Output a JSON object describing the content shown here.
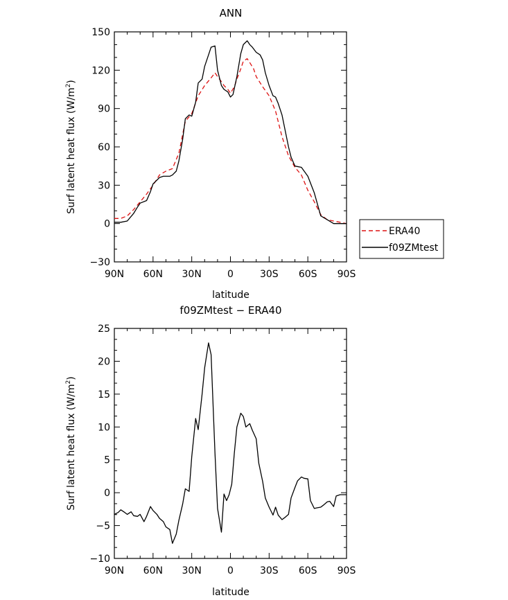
{
  "chart_data": [
    {
      "type": "line",
      "title": "ANN",
      "xlabel": "latitude",
      "ylabel": "Surf latent heat flux (W/m²)",
      "ylabel_prefix": "Surf latent heat flux (W/m",
      "ylabel_sup": "2",
      "ylabel_suffix": ")",
      "xlim": [
        -90,
        90
      ],
      "ylim": [
        -30,
        150
      ],
      "xticks": [
        -90,
        -60,
        -30,
        0,
        30,
        60,
        90
      ],
      "xtick_labels": [
        "90N",
        "60N",
        "30N",
        "0",
        "30S",
        "60S",
        "90S"
      ],
      "yticks": [
        -30,
        0,
        30,
        60,
        90,
        120,
        150
      ],
      "ytick_labels": [
        "−30",
        "0",
        "30",
        "60",
        "90",
        "120",
        "150"
      ],
      "legend": {
        "placement": "outside-right"
      },
      "grid": false,
      "series": [
        {
          "name": "ERA40",
          "color": "#dd1111",
          "dash": "dashed",
          "x": [
            -90,
            -85,
            -80,
            -75,
            -70,
            -65,
            -60,
            -55,
            -50,
            -45,
            -40,
            -35,
            -30,
            -25,
            -20,
            -15,
            -12,
            -10,
            -7,
            -5,
            -2,
            0,
            3,
            5,
            8,
            10,
            13,
            15,
            18,
            20,
            25,
            30,
            35,
            40,
            45,
            50,
            55,
            60,
            65,
            70,
            75,
            80,
            85,
            90
          ],
          "y": [
            4,
            4,
            6,
            11,
            17,
            23,
            30,
            38,
            41,
            43,
            55,
            80,
            86,
            100,
            108,
            114,
            118,
            115,
            111,
            108,
            105,
            102,
            107,
            113,
            121,
            127,
            129,
            126,
            121,
            115,
            107,
            100,
            88,
            68,
            53,
            44,
            38,
            26,
            17,
            7,
            3,
            2,
            1,
            0
          ]
        },
        {
          "name": "f09ZMtest",
          "color": "#000000",
          "dash": "solid",
          "x": [
            -90,
            -85,
            -80,
            -75,
            -72,
            -70,
            -65,
            -62,
            -60,
            -55,
            -52,
            -50,
            -47,
            -45,
            -42,
            -40,
            -37,
            -35,
            -32,
            -30,
            -27,
            -25,
            -22,
            -20,
            -17,
            -15,
            -12,
            -10,
            -7,
            -5,
            -2,
            0,
            2,
            5,
            8,
            10,
            13,
            15,
            17,
            20,
            23,
            25,
            27,
            30,
            33,
            35,
            37,
            40,
            45,
            47,
            50,
            55,
            60,
            65,
            70,
            75,
            80,
            85,
            90
          ],
          "y": [
            1,
            1,
            2,
            8,
            13,
            16,
            18,
            25,
            31,
            36,
            37,
            37,
            37,
            38,
            41,
            49,
            66,
            82,
            85,
            84,
            95,
            110,
            113,
            123,
            132,
            138,
            139,
            120,
            108,
            105,
            103,
            99,
            101,
            115,
            133,
            140,
            143,
            140,
            138,
            134,
            132,
            128,
            118,
            108,
            100,
            99,
            94,
            85,
            60,
            52,
            45,
            44,
            37,
            24,
            6,
            3,
            0,
            0,
            0
          ]
        }
      ]
    },
    {
      "type": "line",
      "title": "f09ZMtest − ERA40",
      "xlabel": "latitude",
      "ylabel": "Surf latent heat flux (W/m²)",
      "ylabel_prefix": "Surf latent heat flux (W/m",
      "ylabel_sup": "2",
      "ylabel_suffix": ")",
      "xlim": [
        -90,
        90
      ],
      "ylim": [
        -10,
        25
      ],
      "xticks": [
        -90,
        -60,
        -30,
        0,
        30,
        60,
        90
      ],
      "xtick_labels": [
        "90N",
        "60N",
        "30N",
        "0",
        "30S",
        "60S",
        "90S"
      ],
      "yticks": [
        -10,
        -5,
        0,
        5,
        10,
        15,
        20,
        25
      ],
      "ytick_labels": [
        "−10",
        "−5",
        "0",
        "5",
        "10",
        "15",
        "20",
        "25"
      ],
      "grid": false,
      "series": [
        {
          "color": "#000000",
          "dash": "solid",
          "x": [
            -90,
            -87,
            -85,
            -82,
            -80,
            -77,
            -75,
            -72,
            -70,
            -67,
            -65,
            -62,
            -60,
            -57,
            -55,
            -52,
            -50,
            -47,
            -45,
            -42,
            -40,
            -37,
            -35,
            -32,
            -30,
            -27,
            -25,
            -22,
            -20,
            -17,
            -15,
            -12,
            -10,
            -7,
            -5,
            -3,
            -1,
            1,
            3,
            5,
            8,
            10,
            12,
            15,
            17,
            20,
            22,
            25,
            27,
            30,
            33,
            35,
            37,
            40,
            42,
            45,
            47,
            50,
            52,
            55,
            57,
            60,
            62,
            65,
            67,
            70,
            72,
            75,
            77,
            80,
            82,
            85,
            87,
            90
          ],
          "y": [
            -3.3,
            -3.0,
            -2.6,
            -3.0,
            -3.3,
            -2.9,
            -3.5,
            -3.6,
            -3.3,
            -4.4,
            -3.6,
            -2.1,
            -2.7,
            -3.3,
            -3.9,
            -4.4,
            -5.2,
            -5.6,
            -7.7,
            -6.3,
            -4.2,
            -1.7,
            0.6,
            0.2,
            5.5,
            11.3,
            9.6,
            15.0,
            19.0,
            22.8,
            21.0,
            6.0,
            -2.4,
            -6.0,
            -0.2,
            -1.2,
            -0.3,
            1.3,
            6.0,
            10.0,
            12.1,
            11.6,
            10.0,
            10.5,
            9.5,
            8.2,
            4.5,
            1.7,
            -0.8,
            -2.2,
            -3.4,
            -2.2,
            -3.4,
            -4.1,
            -3.8,
            -3.3,
            -0.8,
            0.8,
            1.8,
            2.4,
            2.2,
            2.1,
            -1.2,
            -2.4,
            -2.3,
            -2.2,
            -1.9,
            -1.4,
            -1.3,
            -2.1,
            -0.5,
            -0.3,
            -0.3,
            -0.3
          ]
        }
      ]
    }
  ]
}
